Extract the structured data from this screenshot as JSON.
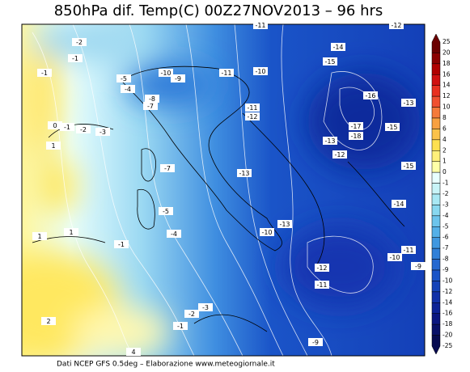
{
  "title": "850hPa dif. Temp(C) 00Z27NOV2013 – 96 hrs",
  "footer": "Dati NCEP GFS 0.5deg – Elaborazione www.meteogiornale.it",
  "colorbar": {
    "labels": [
      "25",
      "20",
      "18",
      "16",
      "14",
      "12",
      "10",
      "8",
      "6",
      "4",
      "2",
      "1",
      "0",
      "-1",
      "-2",
      "-3",
      "-4",
      "-5",
      "-6",
      "-7",
      "-8",
      "-9",
      "-10",
      "-12",
      "-14",
      "-16",
      "-18",
      "-20",
      "-25"
    ],
    "colors": [
      "#6b0000",
      "#8b0000",
      "#b00000",
      "#d01010",
      "#e83020",
      "#f05030",
      "#f57a3a",
      "#f8a040",
      "#fbc24a",
      "#fde050",
      "#fff07a",
      "#ffffa8",
      "#e8ffff",
      "#c8f4f8",
      "#a8e8f4",
      "#88d8f0",
      "#6cc4ec",
      "#54b0e8",
      "#4098e0",
      "#3080d8",
      "#2468d0",
      "#1a54c8",
      "#1442b8",
      "#1030a8",
      "#0c2296",
      "#0a1680",
      "#081068",
      "#060a50"
    ]
  },
  "contour_labels": [
    "-2",
    "-1",
    "-1",
    "-5",
    "-4",
    "-10",
    "-9",
    "-11",
    "-10",
    "-14",
    "-15",
    "-11",
    "-12",
    "-8",
    "-7",
    "-11",
    "-12",
    "-16",
    "-13",
    "-17",
    "-18",
    "-15",
    "-13",
    "-12",
    "-15",
    "-13",
    "0",
    "-2",
    "-3",
    "-1",
    "1",
    "-7",
    "-5",
    "-4",
    "-14",
    "-13",
    "-10",
    "1",
    "1",
    "-1",
    "-12",
    "-11",
    "-11",
    "-10",
    "-9",
    "-3",
    "-2",
    "-1",
    "2",
    "-9",
    "4"
  ]
}
